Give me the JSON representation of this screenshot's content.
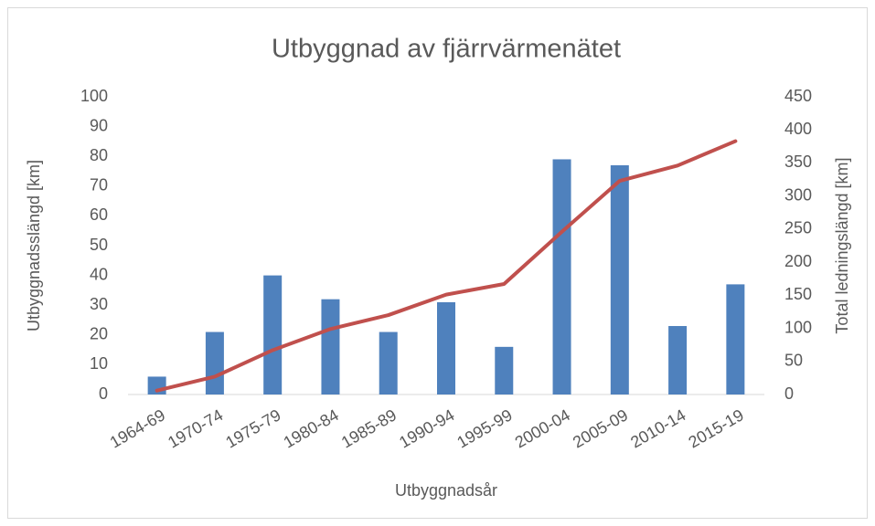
{
  "chart_data": {
    "type": "bar",
    "title": "Utbyggnad av fjärrvärmenätet",
    "x_label": "Utbyggnadsår",
    "y_label": "Utbyggnadsslängd [km]",
    "y2_label": "Total ledningslängd [km]",
    "categories": [
      "1964-69",
      "1970-74",
      "1975-79",
      "1980-84",
      "1985-89",
      "1990-94",
      "1995-99",
      "2000-04",
      "2005-09",
      "2010-14",
      "2015-19"
    ],
    "series": [
      {
        "name": "Utbyggnadsslängd",
        "type": "bar",
        "color": "#4f81bd",
        "values": [
          6,
          21,
          40,
          32,
          21,
          31,
          16,
          79,
          77,
          23,
          37
        ]
      },
      {
        "name": "Total ledningslängd",
        "type": "line",
        "axis": "y2",
        "color": "#c0504d",
        "values": [
          6,
          27,
          67,
          99,
          120,
          151,
          167,
          246,
          323,
          346,
          383
        ]
      }
    ],
    "ylim": [
      0,
      100
    ],
    "yticks": [
      0,
      10,
      20,
      30,
      40,
      50,
      60,
      70,
      80,
      90,
      100
    ],
    "y2lim": [
      0,
      450
    ],
    "y2ticks": [
      0,
      50,
      100,
      150,
      200,
      250,
      300,
      350,
      400,
      450
    ],
    "grid": false
  }
}
